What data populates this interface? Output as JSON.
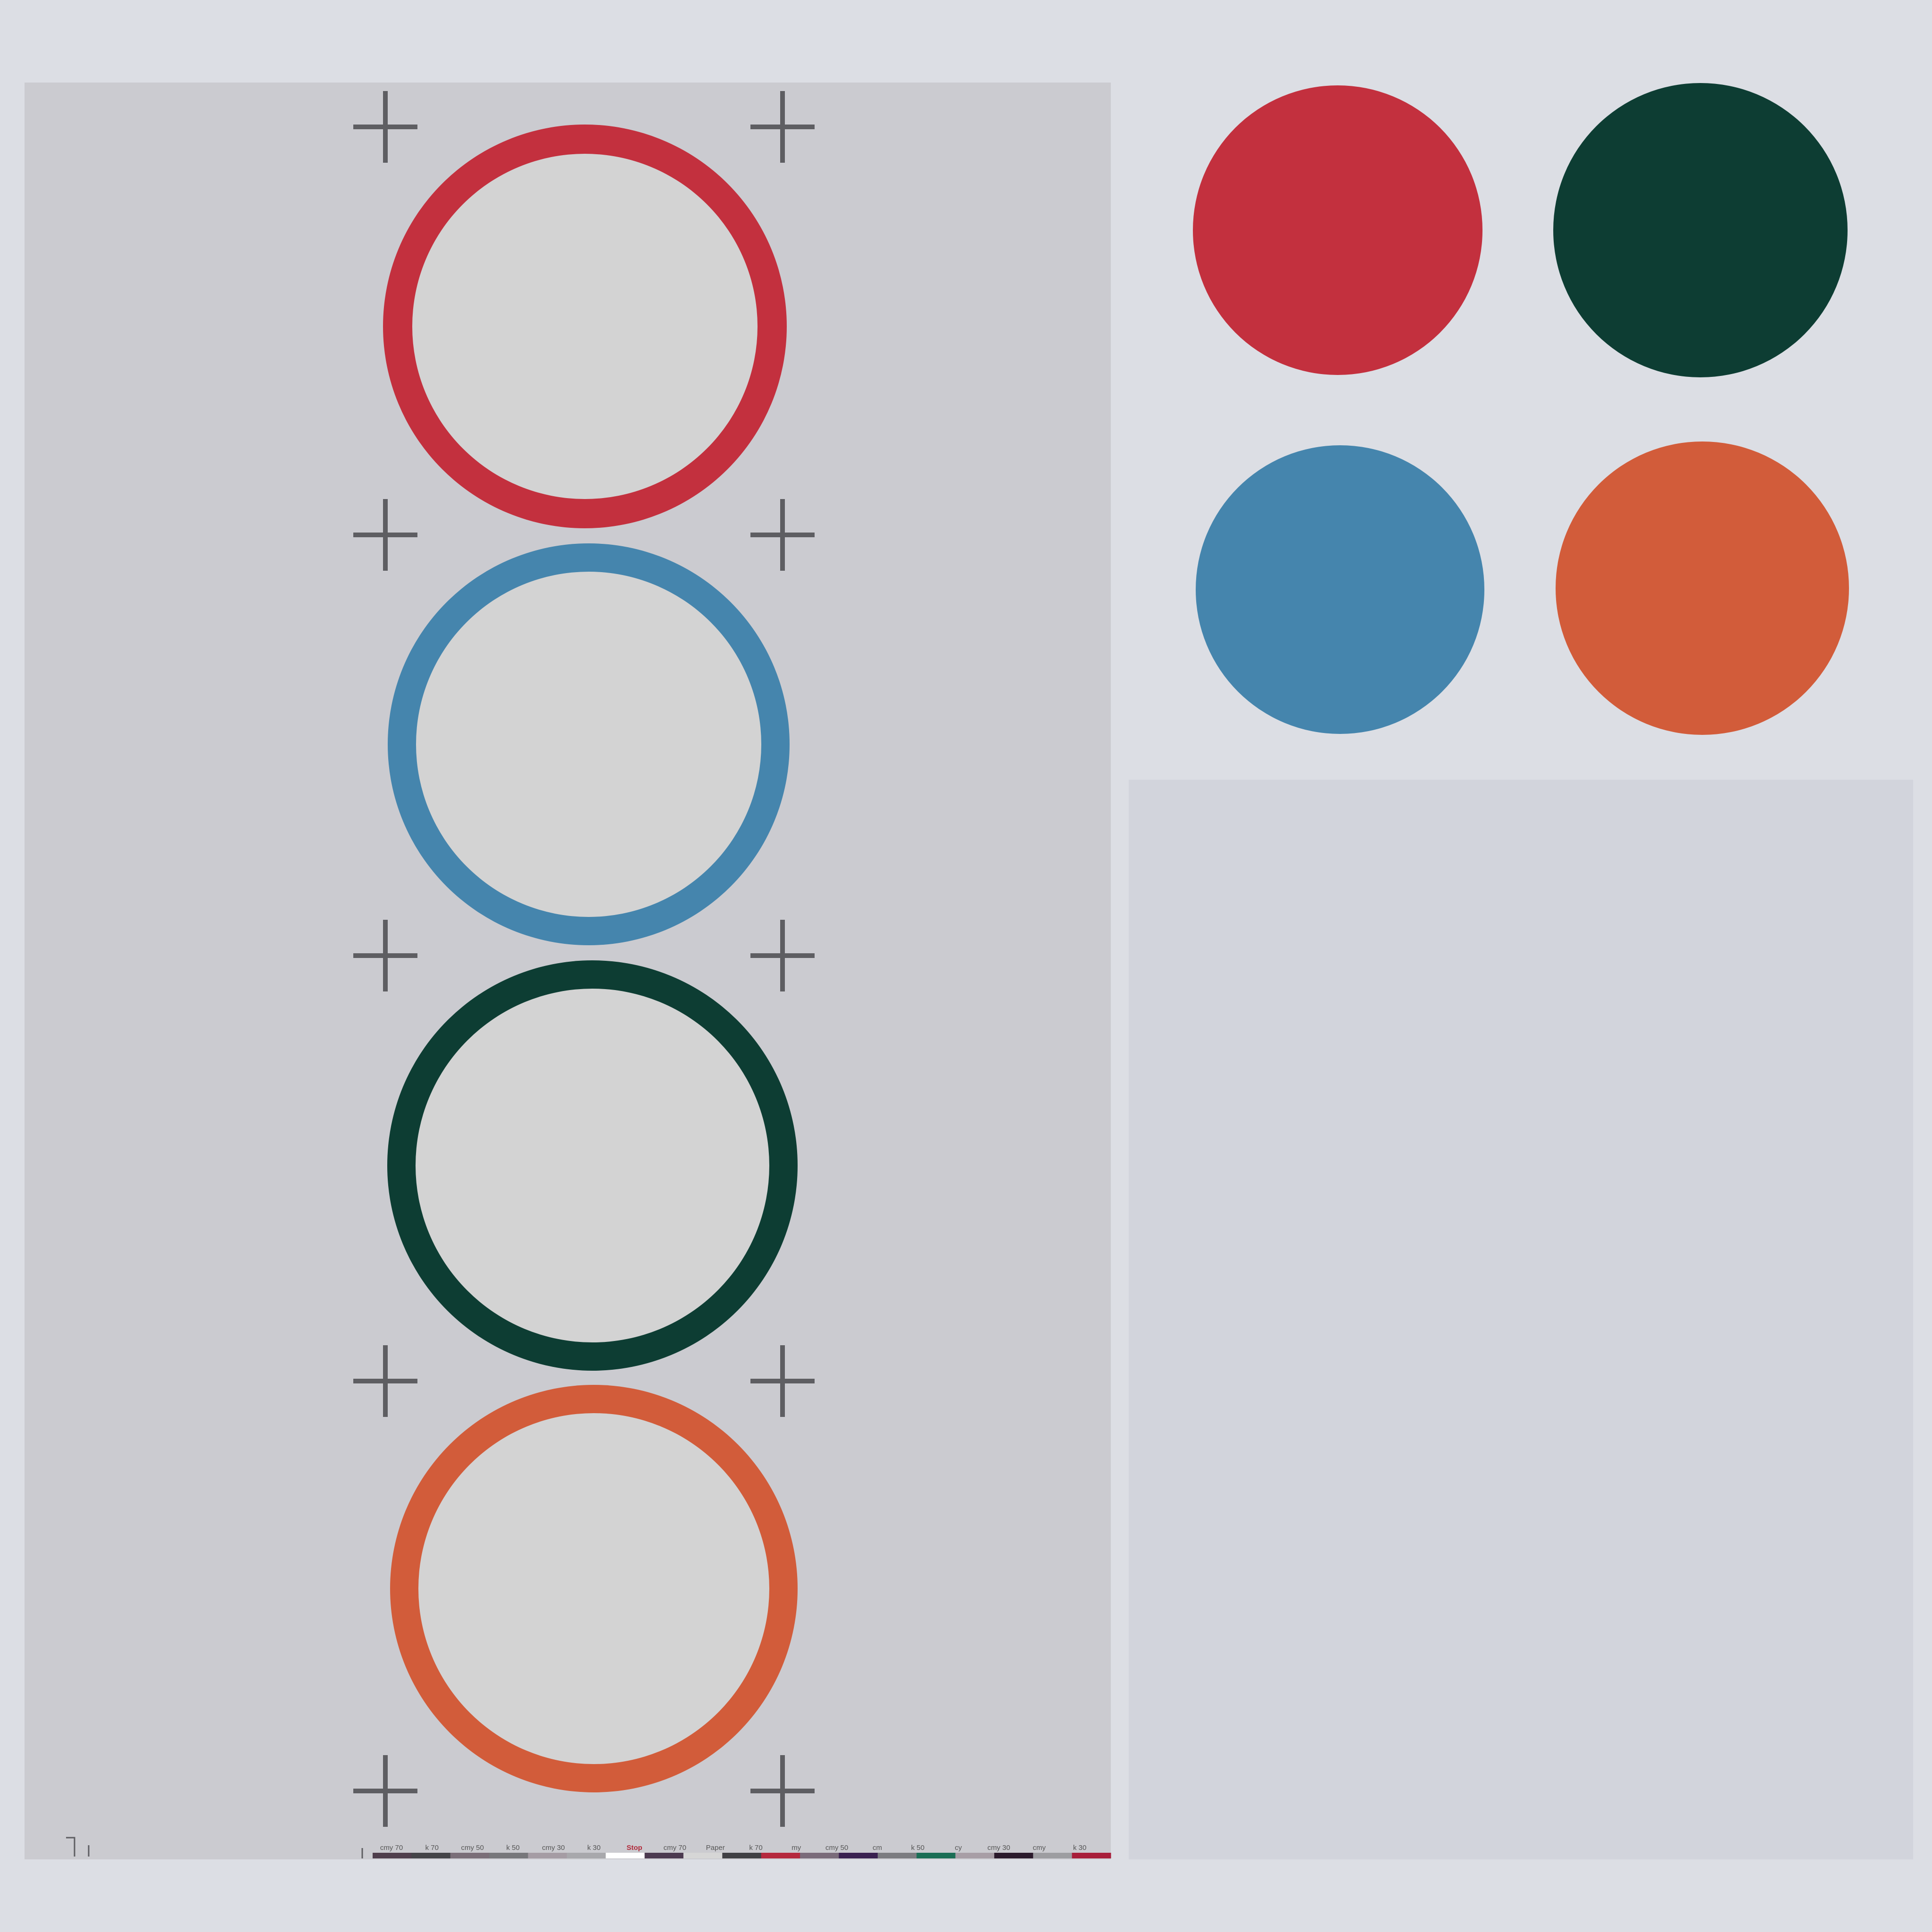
{
  "colors": {
    "red": "#c3303e",
    "blue": "#4585ad",
    "green": "#0d3d33",
    "orange": "#d25c3a",
    "ring_inner": "#d3d3d3",
    "crop_mark": "#5e5e62"
  },
  "rings": [
    {
      "name": "red-ring",
      "color": "#c3303e"
    },
    {
      "name": "blue-ring",
      "color": "#4585ad"
    },
    {
      "name": "green-ring",
      "color": "#0d3d33"
    },
    {
      "name": "orange-ring",
      "color": "#d25c3a"
    }
  ],
  "swatches": [
    {
      "name": "red-swatch",
      "color": "#c3303e"
    },
    {
      "name": "green-swatch",
      "color": "#0d3d33"
    },
    {
      "name": "blue-swatch",
      "color": "#4585ad"
    },
    {
      "name": "orange-swatch",
      "color": "#d25c3a"
    }
  ],
  "control_bar": {
    "labels": [
      "cmy 70",
      "k 70",
      "cmy 50",
      "k 50",
      "cmy 30",
      "k 30",
      "Stop",
      "cmy 70",
      "Paper",
      "k 70",
      "my",
      "cmy 50",
      "cm",
      "k 50",
      "cy",
      "cmy 30",
      "cmy",
      "k 30"
    ],
    "patch_colors": [
      "#4f3e4c",
      "#444448",
      "#7a6e78",
      "#77777b",
      "#a59ca4",
      "#a8a8ac",
      "#ffffff",
      "#4c3a50",
      "#d6d6d6",
      "#404044",
      "#b5283d",
      "#7a6b7a",
      "#3a2150",
      "#7c7c80",
      "#1b6e55",
      "#a89ea6",
      "#2b1a2c",
      "#9d9da1",
      "#a81e3a"
    ]
  }
}
